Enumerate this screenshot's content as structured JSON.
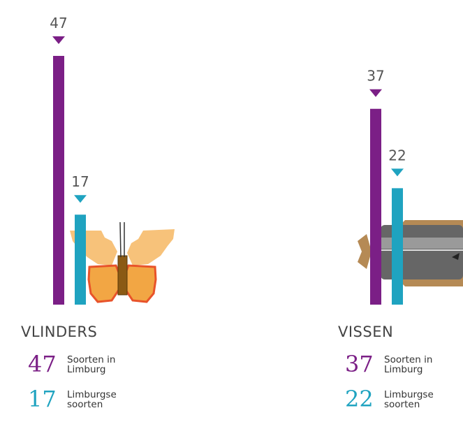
{
  "chart_data": {
    "type": "bar",
    "categories": [
      "VLINDERS",
      "VISSEN"
    ],
    "series": [
      {
        "name": "Soorten in Limburg",
        "color": "#7b1f86",
        "values": [
          47,
          37
        ]
      },
      {
        "name": "Limburgse soorten",
        "color": "#1fa3c0",
        "values": [
          17,
          22
        ]
      }
    ]
  }
}
